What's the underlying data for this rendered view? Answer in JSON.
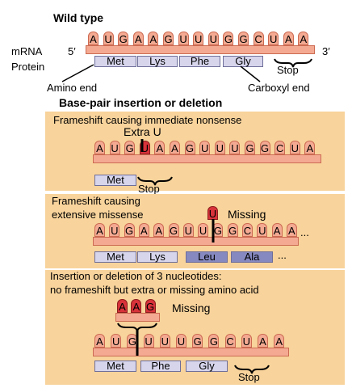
{
  "wild_type": {
    "title": "Wild type",
    "mrna_label": "mRNA",
    "protein_label": "Protein",
    "five_prime": "5′",
    "three_prime": "3′",
    "bases": [
      "A",
      "U",
      "G",
      "A",
      "A",
      "G",
      "U",
      "U",
      "U",
      "G",
      "G",
      "C",
      "U",
      "A",
      "A"
    ],
    "amino_acids": [
      "Met",
      "Lys",
      "Phe",
      "Gly"
    ],
    "stop_label": "Stop",
    "amino_end_label": "Amino end",
    "carboxyl_end_label": "Carboxyl end"
  },
  "section_title": "Base-pair insertion or deletion",
  "panel1": {
    "title": "Frameshift causing immediate nonsense",
    "callout": "Extra U",
    "bases": [
      "A",
      "U",
      "G",
      "U",
      "A",
      "A",
      "G",
      "U",
      "U",
      "U",
      "G",
      "G",
      "C",
      "U",
      "A"
    ],
    "highlight_index": 3,
    "amino_acids": [
      "Met"
    ],
    "stop_label": "Stop"
  },
  "panel2": {
    "title_line1": "Frameshift causing",
    "title_line2": "extensive missense",
    "callout": "Missing",
    "missing_base": "U",
    "bases": [
      "A",
      "U",
      "G",
      "A",
      "A",
      "G",
      "U",
      "U",
      "G",
      "G",
      "C",
      "U",
      "A",
      "A"
    ],
    "amino_acids": [
      "Met",
      "Lys",
      "Leu",
      "Ala"
    ],
    "ellipsis": "..."
  },
  "panel3": {
    "title_line1": "Insertion or deletion of 3 nucleotides:",
    "title_line2": "no frameshift but extra or missing amino acid",
    "callout": "Missing",
    "missing_bases": [
      "A",
      "A",
      "G"
    ],
    "bases": [
      "A",
      "U",
      "G",
      "U",
      "U",
      "U",
      "G",
      "G",
      "C",
      "U",
      "A",
      "A"
    ],
    "amino_acids": [
      "Met",
      "Phe",
      "Gly"
    ],
    "stop_label": "Stop"
  },
  "colors": {
    "panel_bg": "#f8d39b",
    "strand": "#f4aa92",
    "highlight": "#d8323a",
    "amino": "#d6d5ec",
    "amino_changed": "#8689bf"
  }
}
